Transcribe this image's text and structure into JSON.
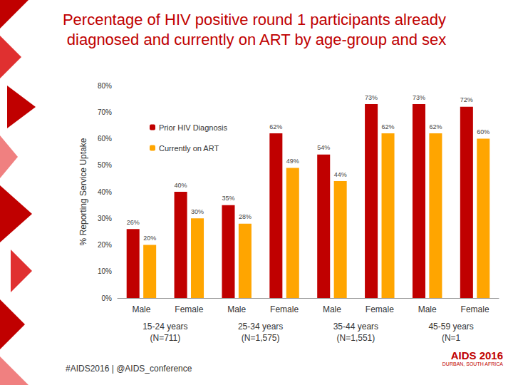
{
  "chart_data": {
    "type": "bar",
    "title": "Percentage of HIV positive round 1 participants already diagnosed and currently on ART by age-group and sex",
    "y_label": "% Reporting Service Uptake",
    "categories": [
      "Male",
      "Female",
      "Male",
      "Female",
      "Male",
      "Female",
      "Male",
      "Female"
    ],
    "groups": [
      "15-24 years",
      "25-34 years",
      "35-44 years",
      "45-59 years"
    ],
    "group_notes": [
      "(N=711)",
      "(N=1,575)",
      "(N=1,551)",
      "(N=1"
    ],
    "series": [
      {
        "name": "Prior HIV Diagnosis",
        "color": "#C00000",
        "values": [
          26,
          40,
          35,
          62,
          54,
          73,
          73,
          72
        ],
        "value_labels": [
          "26%",
          "40%",
          "35%",
          "62%",
          "54%",
          "73%",
          "73%",
          "72%"
        ]
      },
      {
        "name": "Currently on ART",
        "color": "#FFA500",
        "values": [
          20,
          30,
          28,
          49,
          44,
          62,
          62,
          60
        ],
        "value_labels": [
          "20%",
          "30%",
          "28%",
          "49%",
          "44%",
          "62%",
          "62%",
          "60%"
        ]
      }
    ],
    "ylim": [
      0,
      80
    ],
    "yticks": [
      {
        "value": 0,
        "label": "0%"
      },
      {
        "value": 10,
        "label": "10%"
      },
      {
        "value": 20,
        "label": "20%"
      },
      {
        "value": 30,
        "label": "30%"
      },
      {
        "value": 40,
        "label": "40%"
      },
      {
        "value": 50,
        "label": "50%"
      },
      {
        "value": 60,
        "label": "60%"
      },
      {
        "value": 70,
        "label": "70%"
      },
      {
        "value": 80,
        "label": "80%"
      }
    ],
    "grid": false,
    "legend": "upper left",
    "data_labels": true
  },
  "footer": "#AIDS2016 | @AIDS_conference",
  "logo": [
    "AIDS 2016",
    "DURBAN, SOUTH AFRICA"
  ]
}
